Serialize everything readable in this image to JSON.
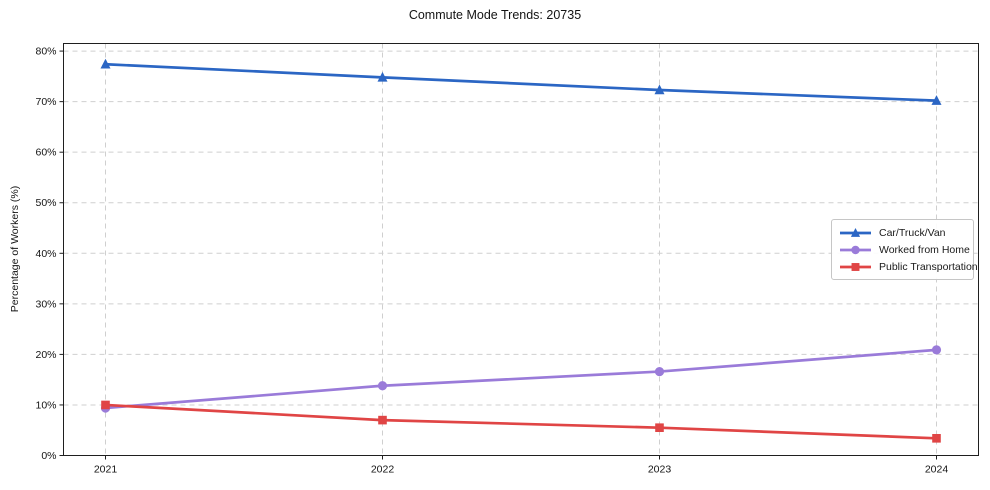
{
  "chart_data": {
    "type": "line",
    "title": "Commute Mode Trends: 20735",
    "xlabel": "",
    "ylabel": "Percentage of Workers (%)",
    "categories": [
      "2021",
      "2022",
      "2023",
      "2024"
    ],
    "series": [
      {
        "name": "Car/Truck/Van",
        "values": [
          77.4,
          74.8,
          72.3,
          70.2
        ],
        "color": "#2b66c4",
        "marker": "triangle"
      },
      {
        "name": "Worked from Home",
        "values": [
          9.4,
          13.8,
          16.6,
          20.9
        ],
        "color": "#9a7bd9",
        "marker": "circle"
      },
      {
        "name": "Public Transportation",
        "values": [
          10.0,
          7.0,
          5.5,
          3.4
        ],
        "color": "#e04545",
        "marker": "square"
      }
    ],
    "ylim": [
      0,
      81.5
    ],
    "ytick_values": [
      0,
      10,
      20,
      30,
      40,
      50,
      60,
      70,
      80
    ],
    "ytick_labels": [
      "0%",
      "10%",
      "20%",
      "30%",
      "40%",
      "50%",
      "60%",
      "70%",
      "80%"
    ],
    "grid": true,
    "legend_position": "center right",
    "colors": {
      "grid": "#cfcfcf",
      "axis": "#1f1f1f",
      "tick_text": "#141414",
      "background": "#ffffff"
    }
  }
}
